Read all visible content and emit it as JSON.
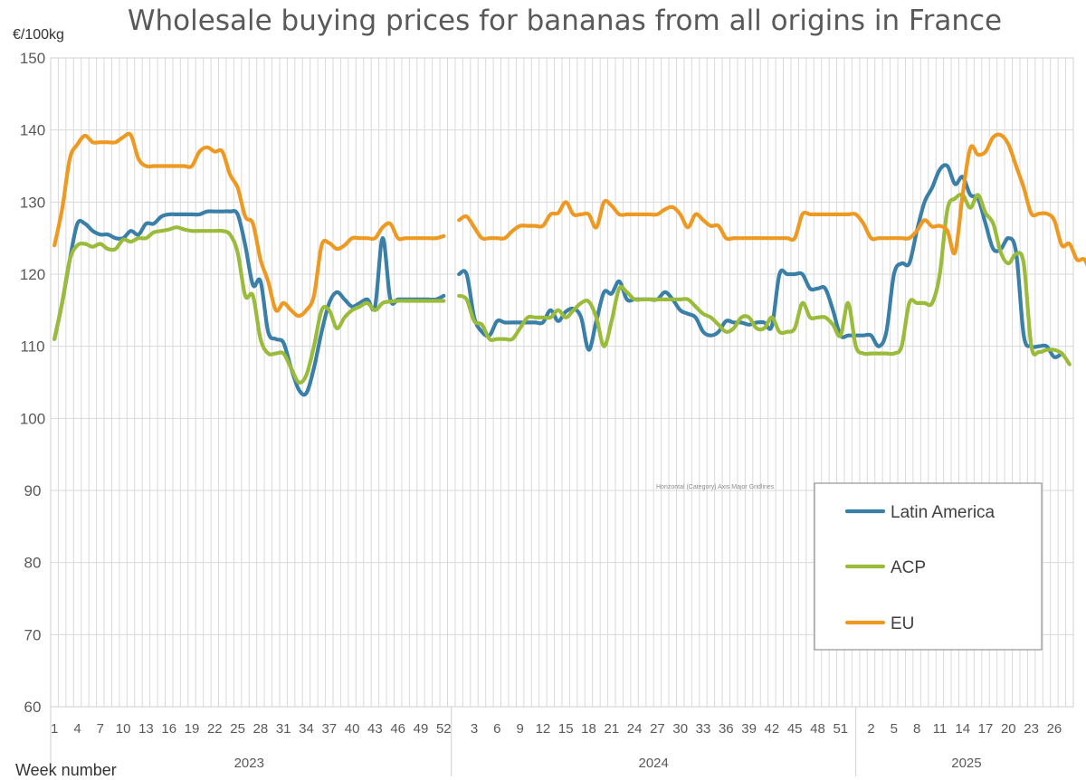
{
  "chart_data": {
    "type": "line",
    "title": "Wholesale buying prices for bananas from all origins in France",
    "ylabel": "€/100kg",
    "xlabel": "Week number",
    "ylim": [
      60,
      150
    ],
    "y_ticks": [
      "60",
      "70",
      "80",
      "90",
      "100",
      "110",
      "120",
      "130",
      "140",
      "150"
    ],
    "grid": true,
    "legend_position": "bottom-right",
    "tooltip": "Horizontal (Category) Axis Major Gridlines",
    "years": [
      {
        "label": "2023",
        "week_count": 52,
        "tick_labels": [
          "1",
          "4",
          "7",
          "10",
          "13",
          "16",
          "19",
          "22",
          "25",
          "28",
          "31",
          "34",
          "37",
          "40",
          "43",
          "46",
          "49",
          "52"
        ]
      },
      {
        "label": "2024",
        "week_count": 52,
        "tick_labels": [
          "3",
          "6",
          "9",
          "12",
          "15",
          "18",
          "21",
          "24",
          "27",
          "30",
          "33",
          "36",
          "39",
          "42",
          "45",
          "48",
          "51"
        ]
      },
      {
        "label": "2025",
        "week_count": 28,
        "tick_labels": [
          "2",
          "5",
          "8",
          "11",
          "14",
          "17",
          "20",
          "23",
          "26"
        ]
      }
    ],
    "series": [
      {
        "name": "Latin America",
        "color": "#3a7fa8",
        "values": [
          111,
          116,
          122,
          127,
          127,
          126,
          125.5,
          125.5,
          125,
          125,
          126,
          125.5,
          127,
          127,
          128,
          128.3,
          128.3,
          128.3,
          128.3,
          128.3,
          128.7,
          128.7,
          128.7,
          128.7,
          128.3,
          124,
          118.5,
          119,
          112,
          111,
          110.5,
          107,
          104,
          103.5,
          107,
          112,
          116,
          117.5,
          116.5,
          115.5,
          116,
          116.5,
          115.5,
          125,
          116.5,
          116.5,
          116.5,
          116.5,
          116.5,
          116.5,
          116.5,
          117,
          null,
          120,
          120,
          114,
          112,
          111.5,
          113.5,
          113.3,
          113.3,
          113.3,
          113.3,
          113.3,
          113.3,
          115,
          113.5,
          114.8,
          115.2,
          114,
          109.5,
          113.5,
          117.5,
          117.3,
          119,
          116.5,
          116.5,
          116.5,
          116.5,
          116.5,
          117.5,
          116.5,
          115,
          114.5,
          114,
          112,
          111.5,
          112,
          113.5,
          113.3,
          113.3,
          113,
          113.3,
          113.3,
          112.8,
          120,
          120,
          120,
          120,
          118,
          118,
          118,
          115,
          111.5,
          111.5,
          111.5,
          111.5,
          111.5,
          110,
          112,
          120,
          121.5,
          121.5,
          126,
          130,
          132,
          134.5,
          135,
          132.5,
          133.5,
          131,
          130.5,
          127,
          123.5,
          123.5,
          125,
          123,
          111.5,
          110,
          110,
          110,
          108.5,
          109
        ]
      },
      {
        "name": "ACP",
        "color": "#9bbb3b",
        "values": [
          111,
          116,
          122,
          124,
          124.2,
          123.8,
          124.2,
          123.5,
          123.5,
          124.8,
          124.5,
          125,
          125,
          125.8,
          126,
          126.2,
          126.5,
          126.2,
          126,
          126,
          126,
          126,
          126,
          125.5,
          123,
          117,
          117,
          111,
          109,
          109,
          109,
          107,
          105,
          106,
          110,
          115,
          115,
          112.5,
          114,
          115,
          115.5,
          116,
          115,
          116,
          116.2,
          116.3,
          116.3,
          116.3,
          116.3,
          116.3,
          116.3,
          116.3,
          null,
          117,
          116.5,
          113.5,
          113,
          111,
          111,
          111,
          111,
          112.5,
          114,
          114,
          114,
          114,
          115,
          114,
          115,
          116,
          116.2,
          114,
          110,
          113.5,
          118,
          117.5,
          116.5,
          116.5,
          116.5,
          116.5,
          116.5,
          116.5,
          116.5,
          116.5,
          115.5,
          114.5,
          114,
          113,
          112,
          112.5,
          114,
          114,
          112.5,
          112.5,
          114,
          112,
          112,
          112.5,
          116,
          114,
          114,
          114,
          113,
          111.5,
          116,
          110,
          109,
          109,
          109,
          109,
          109,
          110,
          116,
          116,
          116,
          116,
          120,
          129,
          130.5,
          131,
          129.2,
          131,
          128.5,
          127,
          123,
          121.5,
          122.8,
          121.5,
          110,
          109.2,
          109.5,
          109.5,
          109,
          107.5
        ]
      },
      {
        "name": "EU",
        "color": "#ee9a22",
        "values": [
          124,
          129,
          136,
          138,
          139.2,
          138.3,
          138.3,
          138.3,
          138.3,
          139,
          139.3,
          136,
          135,
          135,
          135,
          135,
          135,
          135,
          135,
          137,
          137.6,
          137,
          137,
          133.8,
          132,
          128,
          127,
          122,
          119,
          115,
          116,
          115,
          114.2,
          115,
          117,
          124,
          124.3,
          123.5,
          124,
          125,
          125,
          125,
          125,
          126.5,
          127,
          125,
          125,
          125,
          125,
          125,
          125,
          125.3,
          null,
          127.5,
          128,
          126.5,
          125,
          125,
          125,
          125,
          126,
          126.7,
          126.7,
          126.7,
          126.7,
          128.3,
          128.5,
          130,
          128.3,
          128.3,
          128.3,
          126.5,
          130,
          129.5,
          128.3,
          128.3,
          128.3,
          128.3,
          128.3,
          128.3,
          129,
          129.3,
          128.3,
          126.5,
          128.3,
          127.5,
          126.7,
          126.7,
          125,
          125,
          125,
          125,
          125,
          125,
          125,
          125,
          125,
          125,
          128.3,
          128.3,
          128.3,
          128.3,
          128.3,
          128.3,
          128.3,
          128.3,
          127,
          125,
          125,
          125,
          125,
          125,
          125,
          126,
          127.5,
          126.6,
          126.7,
          126,
          123,
          131,
          137.5,
          136.6,
          137,
          139,
          139.3,
          138,
          135,
          132,
          128.4,
          128.4,
          128.4,
          127.5,
          124,
          124.2,
          122,
          122,
          119.5,
          118.5
        ]
      }
    ]
  }
}
